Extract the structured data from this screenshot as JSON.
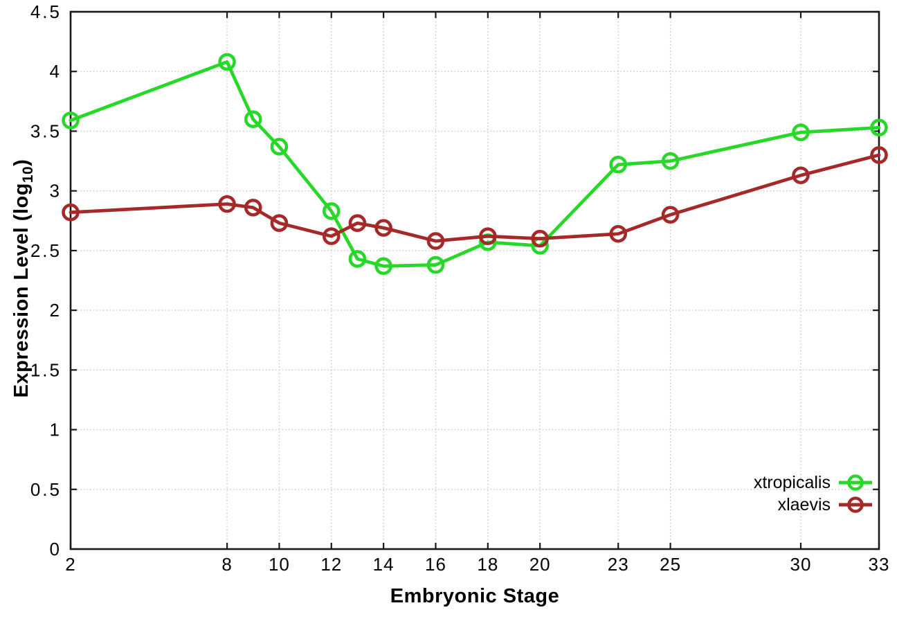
{
  "colors": {
    "background": "#ffffff",
    "axis": "#1a1a1a",
    "grid": "#c4c4c4",
    "text": "#000000",
    "series_green": "#28d828",
    "series_red": "#a62929"
  },
  "chart_data": {
    "type": "line",
    "xlabel": "Embryonic Stage",
    "ylabel": "Expression Level (log10)",
    "ylabel_display": {
      "prefix": "Expression Level (log",
      "sub": "10",
      "suffix": ")"
    },
    "xlim": [
      2,
      33
    ],
    "ylim": [
      0,
      4.5
    ],
    "grid": true,
    "marker": "open-circle",
    "legend_position": "bottom-right",
    "x_tick_values": [
      2,
      8,
      10,
      12,
      14,
      16,
      18,
      20,
      23,
      25,
      30,
      33
    ],
    "x_tick_labels": [
      "2",
      "8",
      "10",
      "12",
      "14",
      "16",
      "18",
      "20",
      "23",
      "25",
      "30",
      "33"
    ],
    "y_tick_values": [
      0,
      0.5,
      1,
      1.5,
      2,
      2.5,
      3,
      3.5,
      4,
      4.5
    ],
    "y_tick_labels": [
      "0",
      "0.5",
      "1",
      "1.5",
      "2",
      "2.5",
      "3",
      "3.5",
      "4",
      "4.5"
    ],
    "x": [
      2,
      8,
      9,
      10,
      12,
      13,
      14,
      16,
      18,
      20,
      23,
      25,
      30,
      33
    ],
    "series": [
      {
        "name": "xtropicalis",
        "color": "#28d828",
        "values": [
          3.59,
          4.08,
          3.6,
          3.37,
          2.83,
          2.43,
          2.37,
          2.38,
          2.57,
          2.54,
          3.22,
          3.25,
          3.49,
          3.53
        ]
      },
      {
        "name": "xlaevis",
        "color": "#a62929",
        "values": [
          2.82,
          2.89,
          2.86,
          2.73,
          2.62,
          2.73,
          2.69,
          2.58,
          2.62,
          2.6,
          2.64,
          2.8,
          3.13,
          3.3
        ]
      }
    ]
  }
}
